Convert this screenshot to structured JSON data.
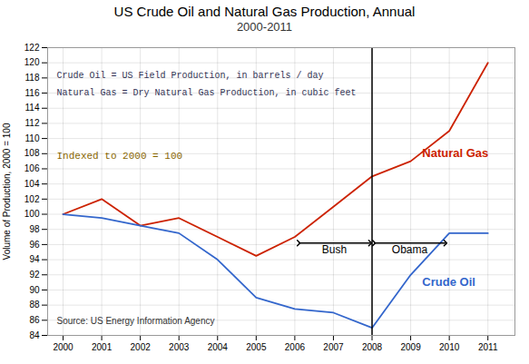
{
  "chart_data": {
    "type": "line",
    "title": "US Crude Oil and Natural Gas Production, Annual",
    "subtitle": "2000-2011",
    "x": [
      2000,
      2001,
      2002,
      2003,
      2004,
      2005,
      2006,
      2007,
      2008,
      2009,
      2010,
      2011
    ],
    "series": [
      {
        "name": "Natural Gas",
        "color": "#cc2200",
        "values": [
          100,
          102,
          98.5,
          99.5,
          97.0,
          94.5,
          97.0,
          101.0,
          105.0,
          107.0,
          111.0,
          120.0
        ],
        "label_x": 2009.3,
        "label_y": 107.5
      },
      {
        "name": "Crude Oil",
        "color": "#3366cc",
        "values": [
          100,
          99.5,
          98.5,
          97.5,
          94.0,
          89.0,
          87.5,
          87.0,
          85.0,
          92.0,
          97.5,
          97.5
        ],
        "label_x": 2009.3,
        "label_y": 90.5
      }
    ],
    "ylabel": "Volume of Production, 2000 = 100",
    "xlim": [
      1999.6,
      2011.7
    ],
    "xticks": [
      2000,
      2001,
      2002,
      2003,
      2004,
      2005,
      2006,
      2007,
      2008,
      2009,
      2010,
      2011
    ],
    "ylim": [
      84,
      122
    ],
    "yticks": [
      84,
      86,
      88,
      90,
      92,
      94,
      96,
      98,
      100,
      102,
      104,
      106,
      108,
      110,
      112,
      114,
      116,
      118,
      120,
      122
    ],
    "grid": true,
    "vlines": [
      2008
    ],
    "arrows": [
      {
        "label": "Bush",
        "x1": 2006.1,
        "x2": 2007.95,
        "y": 96.2
      },
      {
        "label": "Obama",
        "x1": 2008.05,
        "x2": 2009.9,
        "y": 96.2
      }
    ],
    "annotations": [
      {
        "text": "Crude Oil = US Field Production, in barrels / day",
        "color": "#333355"
      },
      {
        "text": "Natural Gas = Dry Natural Gas Production, in cubic feet",
        "color": "#333355"
      },
      {
        "text": "Indexed to 2000 = 100",
        "color": "#886600"
      },
      {
        "text": "Source: US Energy Information Agency",
        "color": "#333333"
      }
    ]
  }
}
